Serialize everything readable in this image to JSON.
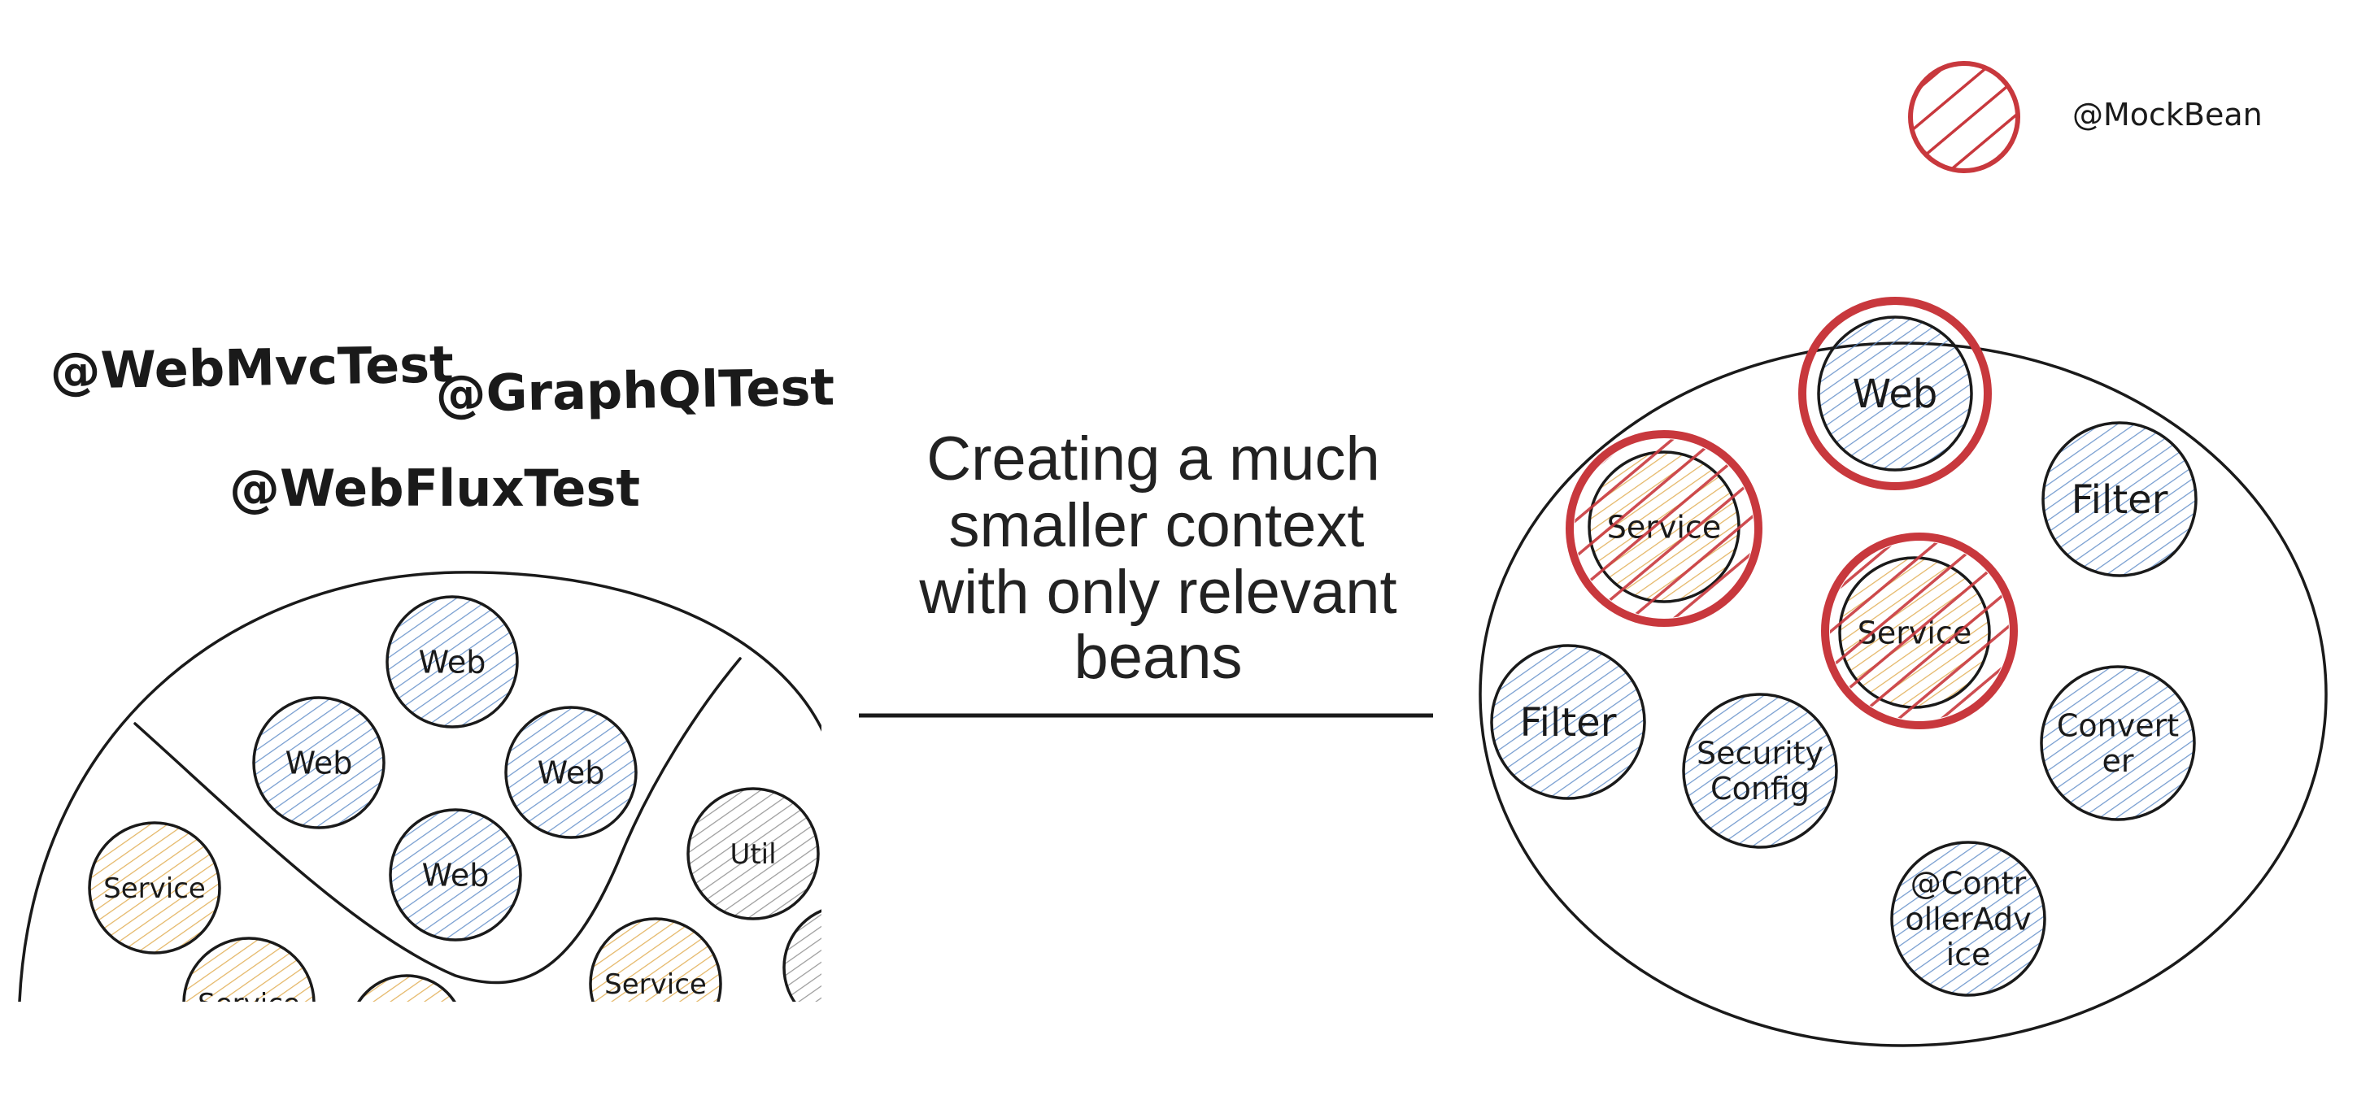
{
  "legend": {
    "label": "@MockBean",
    "color": "#c8383d"
  },
  "annotations": {
    "web_mvc_test": "@WebMvcTest",
    "graphql_test": "@GraphQlTest",
    "web_flux_test": "@WebFluxTest"
  },
  "center_text": {
    "lines": [
      "Creating a much",
      "smaller context",
      "with only relevant",
      "beans"
    ]
  },
  "colors": {
    "web": "#5b8ac7",
    "service": "#e0a94a",
    "util": "#8a8a8a",
    "mock": "#c8383d",
    "ink": "#1a1a1a"
  },
  "left_context": {
    "beans": [
      {
        "type": "web",
        "lines": [
          "Web"
        ]
      },
      {
        "type": "web",
        "lines": [
          "Web"
        ]
      },
      {
        "type": "web",
        "lines": [
          "Web"
        ]
      },
      {
        "type": "web",
        "lines": [
          "Web"
        ]
      },
      {
        "type": "service",
        "lines": [
          "Service"
        ]
      },
      {
        "type": "service",
        "lines": [
          "Service"
        ]
      },
      {
        "type": "service",
        "lines": [
          ""
        ]
      },
      {
        "type": "service",
        "lines": [
          "Service"
        ]
      },
      {
        "type": "util",
        "lines": [
          "Util"
        ]
      },
      {
        "type": "util",
        "lines": [
          ""
        ]
      }
    ]
  },
  "right_context": {
    "beans": [
      {
        "type": "web",
        "lines": [
          "Web"
        ],
        "mocked": false
      },
      {
        "type": "service",
        "lines": [
          "Service"
        ],
        "mocked": true
      },
      {
        "type": "web",
        "lines": [
          "Filter"
        ],
        "mocked": false
      },
      {
        "type": "service",
        "lines": [
          "Service"
        ],
        "mocked": true
      },
      {
        "type": "web",
        "lines": [
          "Filter"
        ],
        "mocked": false
      },
      {
        "type": "web",
        "lines": [
          "Security",
          "Config"
        ],
        "mocked": false
      },
      {
        "type": "web",
        "lines": [
          "Convert",
          "er"
        ],
        "mocked": false
      },
      {
        "type": "web",
        "lines": [
          "@Contr",
          "ollerAdv",
          "ice"
        ],
        "mocked": false
      }
    ],
    "mock_rings": [
      {
        "target": "Web"
      },
      {
        "target": "Service"
      },
      {
        "target": "Service"
      }
    ]
  }
}
